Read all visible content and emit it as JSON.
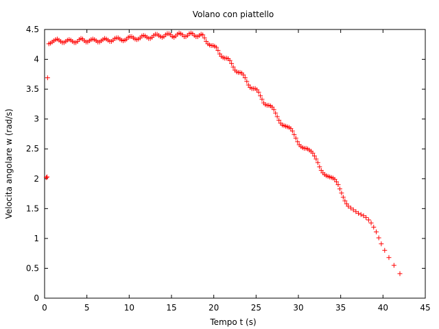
{
  "chart_data": {
    "type": "scatter",
    "title": "Volano con piattello",
    "xlabel": "Tempo t (s)",
    "ylabel": "Velocita angolare w (rad/s)",
    "xlim": [
      0,
      45
    ],
    "ylim": [
      0,
      4.5
    ],
    "xticks": [
      "0",
      "5",
      "10",
      "15",
      "20",
      "25",
      "30",
      "35",
      "40",
      "45"
    ],
    "yticks": [
      "0",
      "0.5",
      "1",
      "1.5",
      "2",
      "2.5",
      "3",
      "3.5",
      "4",
      "4.5"
    ],
    "grid": false,
    "marker": "+",
    "series": [
      {
        "color": "#ff0000",
        "points": [
          [
            0.2,
            2.02
          ],
          [
            0.3,
            2.03
          ],
          [
            0.35,
            3.69
          ],
          [
            0.5,
            4.26
          ],
          [
            0.7,
            4.27
          ],
          [
            0.9,
            4.29
          ],
          [
            1.1,
            4.31
          ],
          [
            1.3,
            4.33
          ],
          [
            1.5,
            4.34
          ],
          [
            1.7,
            4.32
          ],
          [
            1.9,
            4.3
          ],
          [
            2.1,
            4.28
          ],
          [
            2.3,
            4.28
          ],
          [
            2.5,
            4.3
          ],
          [
            2.7,
            4.32
          ],
          [
            2.9,
            4.33
          ],
          [
            3.1,
            4.32
          ],
          [
            3.3,
            4.3
          ],
          [
            3.5,
            4.28
          ],
          [
            3.7,
            4.28
          ],
          [
            3.9,
            4.3
          ],
          [
            4.1,
            4.33
          ],
          [
            4.3,
            4.35
          ],
          [
            4.5,
            4.34
          ],
          [
            4.7,
            4.31
          ],
          [
            4.9,
            4.29
          ],
          [
            5.1,
            4.29
          ],
          [
            5.3,
            4.31
          ],
          [
            5.5,
            4.33
          ],
          [
            5.7,
            4.34
          ],
          [
            5.9,
            4.33
          ],
          [
            6.1,
            4.31
          ],
          [
            6.3,
            4.29
          ],
          [
            6.5,
            4.29
          ],
          [
            6.7,
            4.31
          ],
          [
            6.9,
            4.33
          ],
          [
            7.1,
            4.35
          ],
          [
            7.3,
            4.34
          ],
          [
            7.5,
            4.32
          ],
          [
            7.7,
            4.3
          ],
          [
            7.9,
            4.3
          ],
          [
            8.1,
            4.32
          ],
          [
            8.3,
            4.35
          ],
          [
            8.5,
            4.36
          ],
          [
            8.7,
            4.36
          ],
          [
            8.9,
            4.34
          ],
          [
            9.1,
            4.32
          ],
          [
            9.3,
            4.31
          ],
          [
            9.5,
            4.32
          ],
          [
            9.7,
            4.34
          ],
          [
            9.9,
            4.37
          ],
          [
            10.1,
            4.38
          ],
          [
            10.3,
            4.38
          ],
          [
            10.5,
            4.36
          ],
          [
            10.7,
            4.34
          ],
          [
            10.9,
            4.33
          ],
          [
            11.1,
            4.34
          ],
          [
            11.3,
            4.36
          ],
          [
            11.5,
            4.39
          ],
          [
            11.7,
            4.4
          ],
          [
            11.9,
            4.39
          ],
          [
            12.1,
            4.37
          ],
          [
            12.3,
            4.35
          ],
          [
            12.5,
            4.35
          ],
          [
            12.7,
            4.37
          ],
          [
            12.9,
            4.4
          ],
          [
            13.1,
            4.42
          ],
          [
            13.3,
            4.42
          ],
          [
            13.5,
            4.4
          ],
          [
            13.7,
            4.38
          ],
          [
            13.9,
            4.37
          ],
          [
            14.1,
            4.38
          ],
          [
            14.3,
            4.41
          ],
          [
            14.5,
            4.43
          ],
          [
            14.7,
            4.43
          ],
          [
            14.9,
            4.41
          ],
          [
            15.1,
            4.38
          ],
          [
            15.3,
            4.37
          ],
          [
            15.5,
            4.39
          ],
          [
            15.7,
            4.42
          ],
          [
            15.9,
            4.44
          ],
          [
            16.1,
            4.43
          ],
          [
            16.3,
            4.41
          ],
          [
            16.5,
            4.38
          ],
          [
            16.7,
            4.38
          ],
          [
            16.9,
            4.4
          ],
          [
            17.1,
            4.43
          ],
          [
            17.3,
            4.44
          ],
          [
            17.5,
            4.43
          ],
          [
            17.7,
            4.4
          ],
          [
            17.9,
            4.38
          ],
          [
            18.1,
            4.38
          ],
          [
            18.3,
            4.4
          ],
          [
            18.5,
            4.42
          ],
          [
            18.7,
            4.41
          ],
          [
            18.9,
            4.36
          ],
          [
            19.1,
            4.3
          ],
          [
            19.3,
            4.26
          ],
          [
            19.5,
            4.24
          ],
          [
            19.7,
            4.23
          ],
          [
            19.9,
            4.23
          ],
          [
            20.1,
            4.22
          ],
          [
            20.3,
            4.2
          ],
          [
            20.5,
            4.15
          ],
          [
            20.7,
            4.09
          ],
          [
            20.9,
            4.05
          ],
          [
            21.1,
            4.03
          ],
          [
            21.3,
            4.02
          ],
          [
            21.5,
            4.02
          ],
          [
            21.7,
            4.01
          ],
          [
            21.9,
            3.98
          ],
          [
            22.1,
            3.93
          ],
          [
            22.3,
            3.87
          ],
          [
            22.5,
            3.82
          ],
          [
            22.7,
            3.79
          ],
          [
            22.9,
            3.78
          ],
          [
            23.1,
            3.78
          ],
          [
            23.3,
            3.77
          ],
          [
            23.5,
            3.74
          ],
          [
            23.7,
            3.69
          ],
          [
            23.9,
            3.63
          ],
          [
            24.1,
            3.57
          ],
          [
            24.3,
            3.53
          ],
          [
            24.5,
            3.51
          ],
          [
            24.7,
            3.51
          ],
          [
            24.9,
            3.51
          ],
          [
            25.1,
            3.49
          ],
          [
            25.3,
            3.45
          ],
          [
            25.5,
            3.39
          ],
          [
            25.7,
            3.33
          ],
          [
            25.9,
            3.27
          ],
          [
            26.1,
            3.24
          ],
          [
            26.3,
            3.23
          ],
          [
            26.5,
            3.23
          ],
          [
            26.7,
            3.22
          ],
          [
            26.9,
            3.2
          ],
          [
            27.1,
            3.16
          ],
          [
            27.3,
            3.1
          ],
          [
            27.5,
            3.04
          ],
          [
            27.7,
            2.98
          ],
          [
            27.9,
            2.93
          ],
          [
            28.1,
            2.9
          ],
          [
            28.3,
            2.89
          ],
          [
            28.5,
            2.88
          ],
          [
            28.7,
            2.87
          ],
          [
            28.9,
            2.86
          ],
          [
            29.1,
            2.84
          ],
          [
            29.3,
            2.8
          ],
          [
            29.5,
            2.74
          ],
          [
            29.7,
            2.68
          ],
          [
            29.9,
            2.62
          ],
          [
            30.1,
            2.57
          ],
          [
            30.3,
            2.54
          ],
          [
            30.5,
            2.52
          ],
          [
            30.7,
            2.51
          ],
          [
            30.9,
            2.51
          ],
          [
            31.1,
            2.5
          ],
          [
            31.3,
            2.48
          ],
          [
            31.5,
            2.46
          ],
          [
            31.7,
            2.43
          ],
          [
            31.9,
            2.38
          ],
          [
            32.1,
            2.33
          ],
          [
            32.3,
            2.27
          ],
          [
            32.5,
            2.2
          ],
          [
            32.7,
            2.14
          ],
          [
            32.9,
            2.1
          ],
          [
            33.1,
            2.07
          ],
          [
            33.3,
            2.05
          ],
          [
            33.5,
            2.04
          ],
          [
            33.7,
            2.03
          ],
          [
            33.9,
            2.02
          ],
          [
            34.1,
            2.01
          ],
          [
            34.3,
            1.99
          ],
          [
            34.5,
            1.95
          ],
          [
            34.7,
            1.9
          ],
          [
            34.9,
            1.83
          ],
          [
            35.1,
            1.76
          ],
          [
            35.3,
            1.69
          ],
          [
            35.5,
            1.63
          ],
          [
            35.7,
            1.58
          ],
          [
            35.9,
            1.54
          ],
          [
            36.2,
            1.51
          ],
          [
            36.5,
            1.48
          ],
          [
            36.8,
            1.45
          ],
          [
            37.1,
            1.42
          ],
          [
            37.4,
            1.4
          ],
          [
            37.7,
            1.38
          ],
          [
            38.0,
            1.35
          ],
          [
            38.3,
            1.31
          ],
          [
            38.6,
            1.26
          ],
          [
            38.9,
            1.19
          ],
          [
            39.2,
            1.11
          ],
          [
            39.5,
            1.01
          ],
          [
            39.8,
            0.91
          ],
          [
            40.2,
            0.8
          ],
          [
            40.7,
            0.68
          ],
          [
            41.3,
            0.55
          ],
          [
            42.0,
            0.41
          ]
        ]
      }
    ]
  }
}
